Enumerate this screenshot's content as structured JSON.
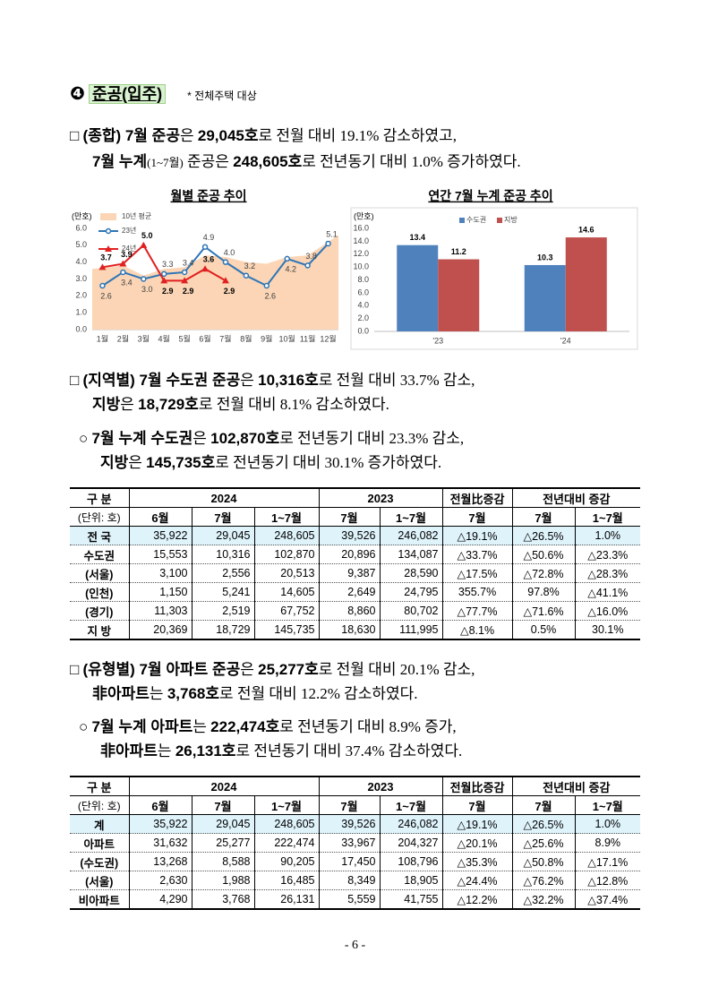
{
  "header": {
    "number": "❹",
    "title": "준공(입주)",
    "note": "* 전체주택 대상"
  },
  "paragraphs": [
    [
      [
        "□ ",
        "(종합) 7월 준공",
        "은 ",
        "29,045호",
        "로 전월 대비 19.1% 감소하였고,"
      ],
      [
        "7월 누계",
        "(1~7월)",
        " 준공은 ",
        "248,605호",
        "로 전년동기 대비 1.0% 증가하였다."
      ]
    ],
    [
      [
        "□ ",
        "(지역별) 7월 수도권 준공",
        "은 ",
        "10,316호",
        "로 전월 대비 33.7% 감소,"
      ],
      [
        "지방",
        "은 ",
        "18,729호",
        "로 전월 대비 8.1% 감소하였다."
      ]
    ],
    [
      [
        "○ ",
        "7월 누계 수도권",
        "은 ",
        "102,870호",
        "로 전년동기 대비 23.3% 감소,"
      ],
      [
        "지방",
        "은 ",
        "145,735호",
        "로 전년동기 대비 30.1% 증가하였다."
      ]
    ],
    [
      [
        "□ ",
        "(유형별) 7월 아파트 준공",
        "은 ",
        "25,277호",
        "로 전월 대비 20.1% 감소,"
      ],
      [
        "非아파트",
        "는 ",
        "3,768호",
        "로 전월 대비 12.2% 감소하였다."
      ]
    ],
    [
      [
        "○ ",
        "7월 누계 아파트",
        "는 ",
        "222,474호",
        "로 전년동기 대비 8.9% 증가,"
      ],
      [
        "非아파트",
        "는 ",
        "26,131호",
        "로 전년동기 대비 37.4% 감소하였다."
      ]
    ]
  ],
  "chart_data": [
    {
      "type": "line",
      "title": "월별 준공 추이",
      "y_label": "(만호)",
      "categories": [
        "1월",
        "2월",
        "3월",
        "4월",
        "5월",
        "6월",
        "7월",
        "8월",
        "9월",
        "10월",
        "11월",
        "12월"
      ],
      "ylim": [
        0,
        6
      ],
      "yticks": [
        {
          "value": 0,
          "label": "0.0"
        },
        {
          "value": 1,
          "label": "1.0"
        },
        {
          "value": 2,
          "label": "2.0"
        },
        {
          "value": 3,
          "label": "3.0"
        },
        {
          "value": 4,
          "label": "4.0"
        },
        {
          "value": 5,
          "label": "5.0"
        },
        {
          "value": 6,
          "label": "6.0"
        }
      ],
      "series": [
        {
          "name": "10년 평균",
          "style": "area",
          "color": "#fbd5b5",
          "values": [
            3.6,
            3.8,
            3.2,
            3.6,
            3.7,
            4.4,
            4.3,
            4.0,
            3.9,
            4.3,
            4.4,
            5.6
          ]
        },
        {
          "name": "23년",
          "marker": "circle",
          "color": "#2e75b6",
          "values": [
            2.6,
            3.4,
            3.0,
            3.3,
            3.4,
            4.9,
            4.0,
            3.2,
            2.6,
            4.2,
            3.8,
            5.1
          ],
          "value_labels": [
            "2.6",
            "3.4",
            "3.0",
            "3.3",
            "3.4",
            "4.9",
            "4.0",
            "3.2",
            "2.6",
            "4.2",
            "3.8",
            "5.1"
          ]
        },
        {
          "name": "24년",
          "marker": "triangle",
          "color": "#e02020",
          "values": [
            3.7,
            3.9,
            5.0,
            2.9,
            2.9,
            3.6,
            2.9,
            null,
            null,
            null,
            null,
            null
          ],
          "value_labels": [
            "3.7",
            "3.9",
            "5.0",
            "2.9",
            "2.9",
            "3.6",
            "2.9",
            null,
            null,
            null,
            null,
            null
          ]
        }
      ]
    },
    {
      "type": "bar",
      "title": "연간 7월 누계 준공 추이",
      "y_label": "(만호)",
      "categories": [
        "'23",
        "'24"
      ],
      "ylim": [
        0,
        16
      ],
      "yticks": [
        {
          "value": 0,
          "label": "0.0"
        },
        {
          "value": 2,
          "label": "2.0"
        },
        {
          "value": 4,
          "label": "4.0"
        },
        {
          "value": 6,
          "label": "6.0"
        },
        {
          "value": 8,
          "label": "8.0"
        },
        {
          "value": 10,
          "label": "10.0"
        },
        {
          "value": 12,
          "label": "12.0"
        },
        {
          "value": 14,
          "label": "14.0"
        },
        {
          "value": 16,
          "label": "16.0"
        }
      ],
      "legend": "top",
      "series": [
        {
          "name": "수도권",
          "color": "#4f81bd",
          "values": [
            13.4,
            10.3
          ]
        },
        {
          "name": "지방",
          "color": "#c0504d",
          "values": [
            11.2,
            14.6
          ]
        }
      ]
    }
  ],
  "tables": [
    {
      "header_top": [
        "구 분",
        "2024",
        "2023",
        "전월比증감",
        "전년대비 증감"
      ],
      "header_sub": [
        "(단위: 호)",
        "6월",
        "7월",
        "1~7월",
        "7월",
        "1~7월",
        "7월",
        "7월",
        "1~7월"
      ],
      "rows": [
        [
          "전 국",
          "35,922",
          "29,045",
          "248,605",
          "39,526",
          "246,082",
          "△19.1%",
          "△26.5%",
          "1.0%"
        ],
        [
          "수도권",
          "15,553",
          "10,316",
          "102,870",
          "20,896",
          "134,087",
          "△33.7%",
          "△50.6%",
          "△23.3%"
        ],
        [
          "(서울)",
          "3,100",
          "2,556",
          "20,513",
          "9,387",
          "28,590",
          "△17.5%",
          "△72.8%",
          "△28.3%"
        ],
        [
          "(인천)",
          "1,150",
          "5,241",
          "14,605",
          "2,649",
          "24,795",
          "355.7%",
          "97.8%",
          "△41.1%"
        ],
        [
          "(경기)",
          "11,303",
          "2,519",
          "67,752",
          "8,860",
          "80,702",
          "△77.7%",
          "△71.6%",
          "△16.0%"
        ],
        [
          "지 방",
          "20,369",
          "18,729",
          "145,735",
          "18,630",
          "111,995",
          "△8.1%",
          "0.5%",
          "30.1%"
        ]
      ]
    },
    {
      "header_top": [
        "구 분",
        "2024",
        "2023",
        "전월比증감",
        "전년대비 증감"
      ],
      "header_sub": [
        "(단위: 호)",
        "6월",
        "7월",
        "1~7월",
        "7월",
        "1~7월",
        "7월",
        "7월",
        "1~7월"
      ],
      "rows": [
        [
          "계",
          "35,922",
          "29,045",
          "248,605",
          "39,526",
          "246,082",
          "△19.1%",
          "△26.5%",
          "1.0%"
        ],
        [
          "아파트",
          "31,632",
          "25,277",
          "222,474",
          "33,967",
          "204,327",
          "△20.1%",
          "△25.6%",
          "8.9%"
        ],
        [
          "(수도권)",
          "13,268",
          "8,588",
          "90,205",
          "17,450",
          "108,796",
          "△35.3%",
          "△50.8%",
          "△17.1%"
        ],
        [
          "(서울)",
          "2,630",
          "1,988",
          "16,485",
          "8,349",
          "18,905",
          "△24.4%",
          "△76.2%",
          "△12.8%"
        ],
        [
          "비아파트",
          "4,290",
          "3,768",
          "26,131",
          "5,559",
          "41,755",
          "△12.2%",
          "△32.2%",
          "△37.4%"
        ]
      ]
    }
  ],
  "footer": "- 6 -"
}
